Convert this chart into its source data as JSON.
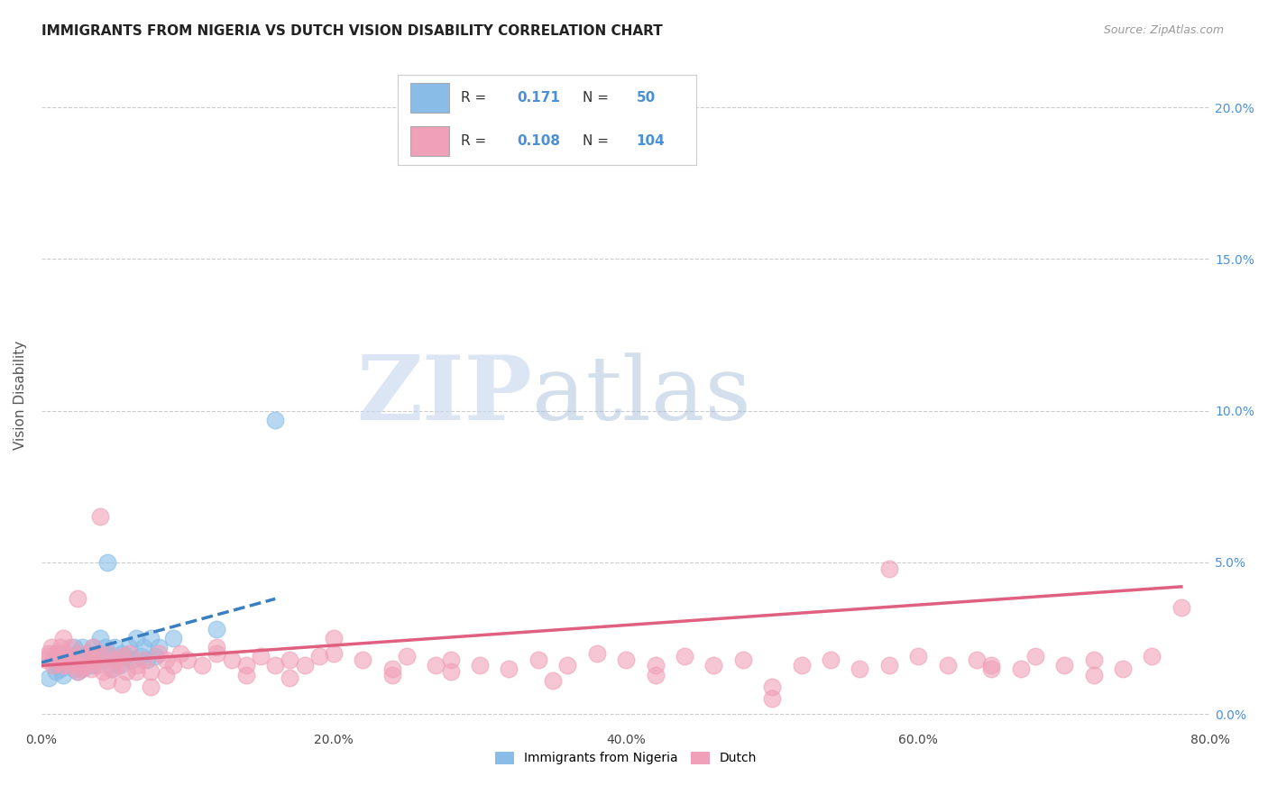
{
  "title": "IMMIGRANTS FROM NIGERIA VS DUTCH VISION DISABILITY CORRELATION CHART",
  "source": "Source: ZipAtlas.com",
  "ylabel_label": "Vision Disability",
  "xlim": [
    0.0,
    0.8
  ],
  "ylim": [
    -0.005,
    0.215
  ],
  "blue_color": "#89bde8",
  "pink_color": "#f0a0b8",
  "blue_line_color": "#3a7fc1",
  "pink_line_color": "#e06080",
  "legend_R_blue": "0.171",
  "legend_N_blue": "50",
  "legend_R_pink": "0.108",
  "legend_N_pink": "104",
  "legend_value_color": "#4a90d9",
  "watermark_zip": "ZIP",
  "watermark_atlas": "atlas",
  "background_color": "#ffffff",
  "grid_color": "#cccccc",
  "title_color": "#222222",
  "axis_label_color": "#555555",
  "right_tick_color": "#4a90d9",
  "blue_scatter_x": [
    0.005,
    0.008,
    0.01,
    0.01,
    0.012,
    0.013,
    0.015,
    0.015,
    0.016,
    0.018,
    0.02,
    0.022,
    0.022,
    0.024,
    0.025,
    0.025,
    0.026,
    0.028,
    0.028,
    0.03,
    0.032,
    0.033,
    0.034,
    0.035,
    0.036,
    0.038,
    0.04,
    0.04,
    0.042,
    0.044,
    0.045,
    0.046,
    0.048,
    0.05,
    0.052,
    0.054,
    0.055,
    0.058,
    0.06,
    0.062,
    0.065,
    0.068,
    0.07,
    0.072,
    0.075,
    0.078,
    0.08,
    0.09,
    0.12,
    0.16
  ],
  "blue_scatter_y": [
    0.012,
    0.018,
    0.014,
    0.02,
    0.016,
    0.015,
    0.018,
    0.013,
    0.02,
    0.016,
    0.019,
    0.015,
    0.022,
    0.017,
    0.014,
    0.02,
    0.018,
    0.015,
    0.022,
    0.017,
    0.016,
    0.02,
    0.018,
    0.022,
    0.016,
    0.019,
    0.02,
    0.025,
    0.018,
    0.022,
    0.05,
    0.019,
    0.015,
    0.022,
    0.018,
    0.016,
    0.02,
    0.019,
    0.022,
    0.018,
    0.025,
    0.019,
    0.022,
    0.018,
    0.025,
    0.019,
    0.022,
    0.025,
    0.028,
    0.097
  ],
  "pink_scatter_x": [
    0.003,
    0.005,
    0.007,
    0.008,
    0.009,
    0.01,
    0.012,
    0.013,
    0.015,
    0.016,
    0.018,
    0.019,
    0.02,
    0.022,
    0.024,
    0.025,
    0.027,
    0.028,
    0.03,
    0.032,
    0.034,
    0.036,
    0.038,
    0.04,
    0.042,
    0.045,
    0.048,
    0.05,
    0.052,
    0.055,
    0.058,
    0.06,
    0.065,
    0.07,
    0.075,
    0.08,
    0.085,
    0.09,
    0.095,
    0.1,
    0.11,
    0.12,
    0.13,
    0.14,
    0.15,
    0.16,
    0.17,
    0.18,
    0.19,
    0.2,
    0.22,
    0.24,
    0.25,
    0.27,
    0.28,
    0.3,
    0.32,
    0.34,
    0.36,
    0.38,
    0.4,
    0.42,
    0.44,
    0.46,
    0.48,
    0.5,
    0.52,
    0.54,
    0.56,
    0.58,
    0.6,
    0.62,
    0.64,
    0.65,
    0.67,
    0.68,
    0.7,
    0.72,
    0.74,
    0.76,
    0.015,
    0.025,
    0.035,
    0.045,
    0.055,
    0.065,
    0.075,
    0.085,
    0.12,
    0.14,
    0.17,
    0.2,
    0.24,
    0.28,
    0.35,
    0.42,
    0.5,
    0.58,
    0.65,
    0.72,
    0.005,
    0.02,
    0.04,
    0.78
  ],
  "pink_scatter_y": [
    0.018,
    0.02,
    0.022,
    0.016,
    0.019,
    0.02,
    0.017,
    0.022,
    0.016,
    0.02,
    0.018,
    0.016,
    0.019,
    0.017,
    0.016,
    0.038,
    0.015,
    0.02,
    0.016,
    0.019,
    0.015,
    0.018,
    0.016,
    0.019,
    0.014,
    0.02,
    0.015,
    0.018,
    0.016,
    0.019,
    0.014,
    0.02,
    0.016,
    0.018,
    0.014,
    0.02,
    0.018,
    0.016,
    0.02,
    0.018,
    0.016,
    0.02,
    0.018,
    0.016,
    0.019,
    0.016,
    0.018,
    0.016,
    0.019,
    0.02,
    0.018,
    0.015,
    0.019,
    0.016,
    0.018,
    0.016,
    0.015,
    0.018,
    0.016,
    0.02,
    0.018,
    0.016,
    0.019,
    0.016,
    0.018,
    0.005,
    0.016,
    0.018,
    0.015,
    0.016,
    0.019,
    0.016,
    0.018,
    0.016,
    0.015,
    0.019,
    0.016,
    0.018,
    0.015,
    0.019,
    0.025,
    0.014,
    0.022,
    0.011,
    0.01,
    0.014,
    0.009,
    0.013,
    0.022,
    0.013,
    0.012,
    0.025,
    0.013,
    0.014,
    0.011,
    0.013,
    0.009,
    0.048,
    0.015,
    0.013,
    0.019,
    0.022,
    0.065,
    0.035
  ],
  "blue_trend_x": [
    0.0,
    0.16
  ],
  "blue_trend_y": [
    0.017,
    0.038
  ],
  "pink_trend_x": [
    0.0,
    0.78
  ],
  "pink_trend_y": [
    0.016,
    0.042
  ],
  "ytick_vals": [
    0.0,
    0.05,
    0.1,
    0.15,
    0.2
  ],
  "ytick_labels_right": [
    "0.0%",
    "5.0%",
    "10.0%",
    "15.0%",
    "20.0%"
  ],
  "xtick_vals": [
    0.0,
    0.2,
    0.4,
    0.6,
    0.8
  ],
  "xtick_labels": [
    "0.0%",
    "20.0%",
    "40.0%",
    "60.0%",
    "80.0%"
  ]
}
